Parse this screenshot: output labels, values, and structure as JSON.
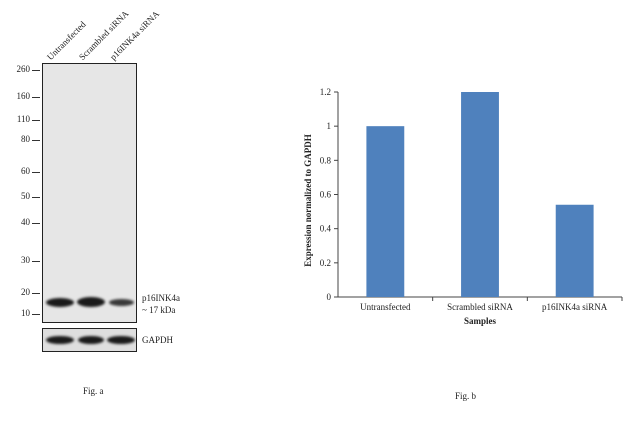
{
  "fig_a": {
    "lanes": [
      "Untransfected",
      "Scrambled siRNA",
      "p16INK4a siRNA"
    ],
    "mw_markers": [
      "260",
      "160",
      "110",
      "80",
      "60",
      "50",
      "40",
      "30",
      "20",
      "10"
    ],
    "band_label": "p16INK4a",
    "band_size": "~ 17 kDa",
    "control_label": "GAPDH",
    "caption": "Fig. a"
  },
  "fig_b": {
    "caption": "Fig. b"
  },
  "chart_data": {
    "type": "bar",
    "categories": [
      "Untransfected",
      "Scrambled siRNA",
      "p16INK4a siRNA"
    ],
    "values": [
      1.0,
      1.2,
      0.54
    ],
    "xlabel": "Samples",
    "ylabel": "Expression  normalized to GAPDH",
    "ylim": [
      0,
      1.2
    ],
    "yticks": [
      "0",
      "0.2",
      "0.4",
      "0.6",
      "0.8",
      "1",
      "1.2"
    ],
    "bar_color": "#4f81bd",
    "grid": false,
    "legend": "none"
  }
}
